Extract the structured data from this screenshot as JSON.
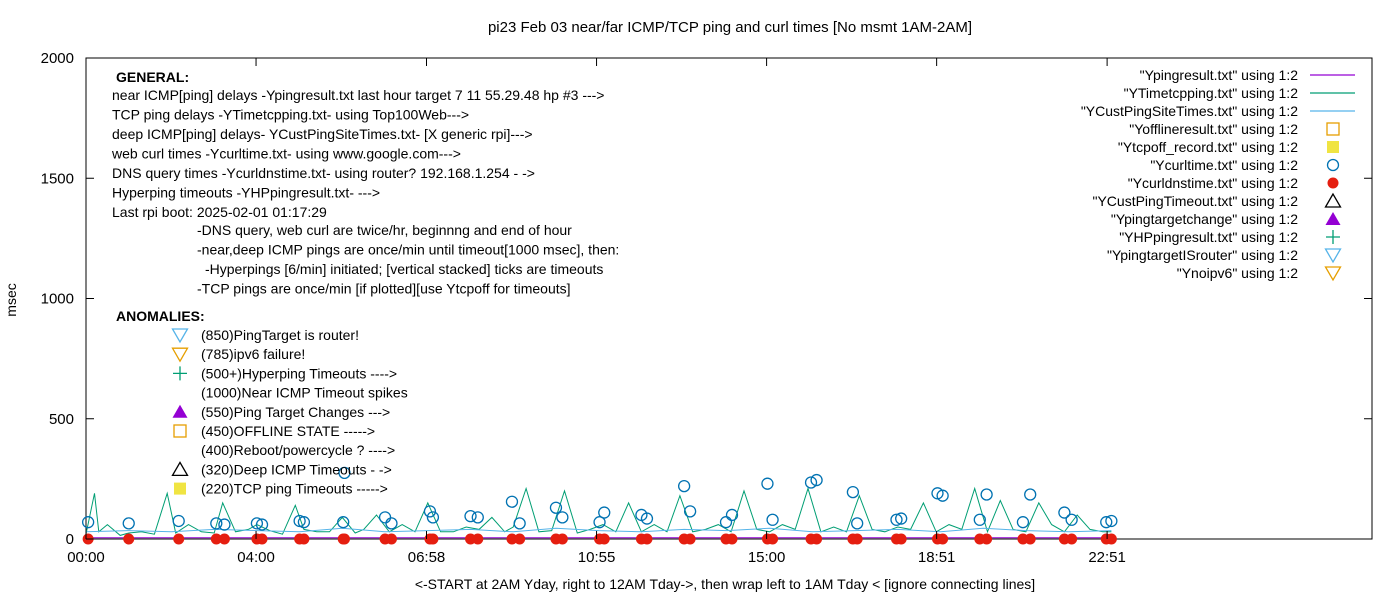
{
  "chart_data": {
    "type": "scatter",
    "title": "pi23 Feb 03  near/far ICMP/TCP ping and curl times [No msmt 1AM-2AM]",
    "xlabel": "<-START at 2AM Yday, right to 12AM Tday->, then wrap left to 1AM Tday  < [ignore connecting lines]",
    "ylabel": "msec",
    "xlim": [
      0,
      30.1
    ],
    "ylim": [
      0,
      2000
    ],
    "x_ticks": [
      {
        "v": 0,
        "label": "00:00"
      },
      {
        "v": 3.98,
        "label": "04:00"
      },
      {
        "v": 7.97,
        "label": "06:58"
      },
      {
        "v": 11.95,
        "label": "10:55"
      },
      {
        "v": 15.93,
        "label": "15:00"
      },
      {
        "v": 19.91,
        "label": "18:51"
      },
      {
        "v": 23.9,
        "label": "22:51"
      }
    ],
    "y_ticks": [
      {
        "v": 0,
        "label": "0"
      },
      {
        "v": 500,
        "label": "500"
      },
      {
        "v": 1000,
        "label": "1000"
      },
      {
        "v": 1500,
        "label": "1500"
      },
      {
        "v": 2000,
        "label": "2000"
      }
    ],
    "grid": false,
    "legend_position": "top-right",
    "legend": [
      {
        "label": "\"Ypingresult.txt\" using 1:2",
        "marker": "line",
        "color": "#9400d3"
      },
      {
        "label": "\"YTimetcpping.txt\" using 1:2",
        "marker": "line",
        "color": "#009e73"
      },
      {
        "label": "\"YCustPingSiteTimes.txt\" using 1:2",
        "marker": "line",
        "color": "#56b4e9"
      },
      {
        "label": "\"Yofflineresult.txt\" using 1:2",
        "marker": "open-square",
        "color": "#e69f00"
      },
      {
        "label": "\"Ytcpoff_record.txt\" using 1:2",
        "marker": "filled-square",
        "color": "#f0e442"
      },
      {
        "label": "\"Ycurltime.txt\" using 1:2",
        "marker": "open-circle",
        "color": "#0072b2"
      },
      {
        "label": "\"Ycurldnstime.txt\" using 1:2",
        "marker": "filled-circle",
        "color": "#e51e10"
      },
      {
        "label": "\"YCustPingTimeout.txt\" using 1:2",
        "marker": "open-triangle",
        "color": "#000000"
      },
      {
        "label": "\"Ypingtargetchange\" using 1:2",
        "marker": "filled-triangle",
        "color": "#9400d3"
      },
      {
        "label": "\"YHPpingresult.txt\" using 1:2",
        "marker": "plus",
        "color": "#009e73"
      },
      {
        "label": "\"YpingtargetISrouter\" using 1:2",
        "marker": "open-down-triangle",
        "color": "#56b4e9"
      },
      {
        "label": "\"Ynoipv6\" using 1:2",
        "marker": "open-down-triangle",
        "color": "#e69f00"
      }
    ],
    "annotations": {
      "general_heading": "GENERAL:",
      "general_lines": [
        "near ICMP[ping] delays -Ypingresult.txt last hour target 7 11 55.29.48 hp #3 --->",
        "TCP ping delays -YTimetcpping.txt- using Top100Web--->",
        "deep ICMP[ping] delays- YCustPingSiteTimes.txt- [X generic rpi]--->",
        "web curl times -Ycurltime.txt- using www.google.com--->",
        "DNS query times -Ycurldnstime.txt- using router? 192.168.1.254 - ->",
        "Hyperping timeouts -YHPpingresult.txt- --->",
        "Last rpi boot: 2025-02-01 01:17:29"
      ],
      "notes": [
        "-DNS query, web curl are twice/hr, beginnng and end of hour",
        "-near,deep ICMP pings are once/min  until timeout[1000 msec], then:",
        "-Hyperpings [6/min] initiated; [vertical stacked] ticks are timeouts",
        "-TCP pings are once/min  [if plotted][use Ytcpoff for timeouts]"
      ],
      "anomalies_heading": "ANOMALIES:",
      "anomalies": [
        {
          "marker": "open-down-triangle",
          "color": "#56b4e9",
          "text": "(850)PingTarget is router!"
        },
        {
          "marker": "open-down-triangle",
          "color": "#e69f00",
          "text": "(785)ipv6 failure!"
        },
        {
          "marker": "plus",
          "color": "#009e73",
          "text": "(500+)Hyperping Timeouts ---->"
        },
        {
          "marker": "none",
          "color": "",
          "text": "(1000)Near ICMP Timeout spikes"
        },
        {
          "marker": "filled-triangle",
          "color": "#9400d3",
          "text": "(550)Ping Target Changes --->"
        },
        {
          "marker": "open-square",
          "color": "#e69f00",
          "text": "(450)OFFLINE STATE ----->"
        },
        {
          "marker": "none",
          "color": "",
          "text": "(400)Reboot/powercycle ? ---->"
        },
        {
          "marker": "open-triangle",
          "color": "#000000",
          "text": "(320)Deep ICMP Timeouts - ->"
        },
        {
          "marker": "filled-square",
          "color": "#f0e442",
          "text": "(220)TCP ping Timeouts ----->"
        }
      ]
    },
    "series": [
      {
        "marker": "open-circle",
        "color": "#0072b2",
        "x": [
          0.05,
          1.0,
          2.17,
          3.05,
          3.24,
          4.0,
          4.12,
          5.0,
          5.1,
          6.02,
          6.05,
          7.0,
          7.15,
          8.05,
          8.12,
          9.0,
          9.17,
          9.97,
          10.15,
          11.0,
          11.15,
          12.02,
          12.13,
          13.0,
          13.13,
          14.0,
          14.14,
          14.98,
          15.12,
          15.95,
          16.07,
          16.97,
          17.1,
          17.95,
          18.05,
          18.97,
          19.08,
          19.93,
          20.05,
          20.92,
          21.08,
          21.93,
          22.1,
          22.9,
          23.07,
          23.88,
          24.0
        ],
        "y": [
          70,
          65,
          75,
          65,
          60,
          65,
          60,
          75,
          70,
          70,
          275,
          90,
          65,
          115,
          90,
          95,
          90,
          155,
          65,
          130,
          90,
          70,
          110,
          100,
          85,
          220,
          115,
          70,
          100,
          230,
          80,
          235,
          245,
          195,
          65,
          80,
          85,
          190,
          180,
          80,
          185,
          70,
          185,
          110,
          80,
          70,
          75
        ]
      },
      {
        "marker": "filled-circle",
        "color": "#e51e10",
        "x": [
          0.05,
          1.0,
          2.17,
          3.05,
          3.24,
          4.0,
          4.12,
          5.0,
          5.1,
          6.02,
          6.05,
          7.0,
          7.15,
          8.05,
          8.12,
          9.0,
          9.17,
          9.97,
          10.15,
          11.0,
          11.15,
          12.02,
          12.13,
          13.0,
          13.13,
          14.0,
          14.14,
          14.98,
          15.12,
          15.95,
          16.07,
          16.97,
          17.1,
          17.95,
          18.05,
          18.97,
          19.08,
          19.93,
          20.05,
          20.92,
          21.08,
          21.93,
          22.1,
          22.9,
          23.07,
          23.88,
          24.0
        ],
        "y": [
          0,
          0,
          0,
          0,
          0,
          0,
          0,
          0,
          0,
          0,
          0,
          0,
          0,
          0,
          0,
          0,
          0,
          0,
          0,
          0,
          0,
          0,
          0,
          0,
          0,
          0,
          0,
          0,
          0,
          0,
          0,
          0,
          0,
          0,
          0,
          0,
          0,
          0,
          0,
          0,
          0,
          0,
          0,
          0,
          0,
          0,
          0
        ]
      },
      {
        "marker": "line",
        "color": "#009e73",
        "x": [
          0.0,
          0.2,
          0.3,
          0.5,
          0.8,
          1.0,
          1.3,
          1.6,
          1.9,
          2.1,
          2.4,
          2.7,
          3.0,
          3.2,
          3.5,
          3.8,
          4.0,
          4.3,
          4.6,
          4.9,
          5.1,
          5.4,
          5.7,
          6.0,
          6.3,
          6.5,
          6.8,
          7.1,
          7.4,
          7.7,
          8.0,
          8.3,
          8.6,
          8.9,
          9.2,
          9.5,
          9.8,
          10.0,
          10.3,
          10.6,
          10.9,
          11.2,
          11.5,
          11.8,
          12.1,
          12.4,
          12.7,
          13.0,
          13.3,
          13.6,
          13.9,
          14.2,
          14.5,
          14.8,
          15.1,
          15.4,
          15.7,
          16.0,
          16.3,
          16.6,
          16.9,
          17.2,
          17.5,
          17.8,
          18.1,
          18.4,
          18.7,
          19.0,
          19.3,
          19.6,
          19.9,
          20.2,
          20.5,
          20.8,
          21.1,
          21.4,
          21.7,
          22.0,
          22.3,
          22.6,
          22.9,
          23.2,
          23.5,
          23.8,
          24.0
        ],
        "y": [
          20,
          190,
          30,
          60,
          15,
          25,
          30,
          20,
          190,
          25,
          60,
          30,
          25,
          150,
          30,
          40,
          60,
          35,
          20,
          140,
          40,
          30,
          30,
          90,
          25,
          40,
          100,
          30,
          60,
          30,
          150,
          30,
          30,
          50,
          40,
          90,
          30,
          50,
          210,
          30,
          35,
          200,
          25,
          40,
          60,
          30,
          150,
          30,
          60,
          30,
          180,
          30,
          40,
          60,
          30,
          200,
          40,
          30,
          60,
          40,
          210,
          30,
          50,
          30,
          180,
          40,
          30,
          50,
          40,
          150,
          30,
          60,
          40,
          210,
          30,
          160,
          40,
          30,
          150,
          60,
          30,
          100,
          40,
          30,
          30
        ]
      },
      {
        "marker": "line",
        "color": "#56b4e9",
        "x": [
          0.0,
          1.0,
          2.0,
          3.0,
          4.0,
          5.0,
          6.0,
          7.0,
          8.0,
          9.0,
          10.0,
          11.0,
          12.0,
          13.0,
          14.0,
          15.0,
          16.0,
          17.0,
          18.0,
          19.0,
          20.0,
          21.0,
          22.0,
          23.0,
          24.0
        ],
        "y": [
          30,
          35,
          30,
          40,
          35,
          30,
          45,
          30,
          35,
          40,
          30,
          45,
          35,
          30,
          40,
          35,
          45,
          30,
          35,
          40,
          30,
          45,
          35,
          30,
          35
        ]
      },
      {
        "marker": "line",
        "color": "#9400d3",
        "x": [
          0.0,
          6.0,
          12.0,
          18.0,
          24.0
        ],
        "y": [
          5,
          5,
          5,
          5,
          5
        ]
      }
    ]
  }
}
